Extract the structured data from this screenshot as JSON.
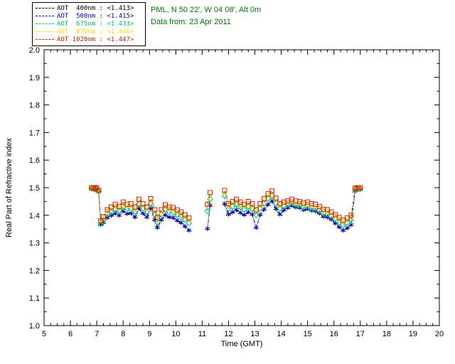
{
  "header": {
    "site_line": "PML, N 50 22', W 04 08', Alt 0m",
    "date_line": "Data from: 23 Apr 2011",
    "text_color": "#007700"
  },
  "legend": {
    "items": [
      {
        "label": "AOT  400nm : <1.413>",
        "color": "#000000",
        "marker": "dash"
      },
      {
        "label": "AOT  500nm : <1.415>",
        "color": "#0000cc",
        "marker": "asterisk"
      },
      {
        "label": "AOT  675nm : <1.433>",
        "color": "#00c060",
        "marker": "diamond"
      },
      {
        "label": "AOT  870nm : <1.446>",
        "color": "#ffd800",
        "marker": "x"
      },
      {
        "label": "AOT 1020nm : <1.447>",
        "color": "#cc2200",
        "marker": "square"
      }
    ]
  },
  "chart_data": {
    "type": "scatter",
    "title": "",
    "xlabel": "Time (GMT)",
    "ylabel": "Real Part of Refractive index",
    "xlim": [
      5,
      20
    ],
    "ylim": [
      1.0,
      2.0
    ],
    "xticks": [
      5,
      6,
      7,
      8,
      9,
      10,
      11,
      12,
      13,
      14,
      15,
      16,
      17,
      18,
      19,
      20
    ],
    "yticks": [
      1.0,
      1.1,
      1.2,
      1.3,
      1.4,
      1.5,
      1.6,
      1.7,
      1.8,
      1.9,
      2.0
    ],
    "grid": false,
    "legend_position": "top-left",
    "x": [
      6.8,
      6.87,
      6.93,
      7.0,
      7.07,
      7.15,
      7.25,
      7.4,
      7.55,
      7.7,
      7.85,
      8.0,
      8.15,
      8.3,
      8.45,
      8.6,
      8.75,
      8.9,
      9.05,
      9.2,
      9.3,
      9.45,
      9.6,
      9.75,
      9.9,
      10.05,
      10.2,
      10.35,
      10.5,
      11.2,
      11.3,
      11.85,
      12.0,
      12.15,
      12.3,
      12.45,
      12.6,
      12.75,
      12.9,
      13.05,
      13.2,
      13.35,
      13.5,
      13.65,
      13.8,
      13.95,
      14.1,
      14.25,
      14.4,
      14.55,
      14.7,
      14.85,
      15.0,
      15.15,
      15.3,
      15.45,
      15.6,
      15.75,
      15.9,
      16.05,
      16.2,
      16.35,
      16.5,
      16.65,
      16.8,
      16.87,
      16.93,
      17.0
    ],
    "series": [
      {
        "name": "AOT 400nm",
        "mean": "<1.413>",
        "color": "#000000",
        "marker": "dash",
        "values": [
          1.495,
          1.495,
          1.492,
          1.495,
          1.485,
          1.364,
          1.371,
          1.389,
          1.397,
          1.405,
          1.397,
          1.413,
          1.403,
          1.405,
          1.391,
          1.423,
          1.405,
          1.391,
          1.423,
          1.381,
          1.353,
          1.381,
          1.399,
          1.391,
          1.389,
          1.379,
          1.371,
          1.357,
          1.343,
          1.349,
          1.433,
          1.439,
          1.401,
          1.409,
          1.417,
          1.407,
          1.399,
          1.409,
          1.401,
          1.353,
          1.399,
          1.419,
          1.437,
          1.449,
          1.421,
          1.401,
          1.417,
          1.425,
          1.433,
          1.427,
          1.425,
          1.417,
          1.421,
          1.415,
          1.413,
          1.405,
          1.393,
          1.391,
          1.383,
          1.369,
          1.355,
          1.343,
          1.351,
          1.363,
          1.485,
          1.491,
          1.491,
          1.491
        ]
      },
      {
        "name": "AOT 500nm",
        "mean": "<1.415>",
        "color": "#0000cc",
        "marker": "asterisk",
        "values": [
          1.496,
          1.496,
          1.493,
          1.496,
          1.486,
          1.366,
          1.374,
          1.392,
          1.4,
          1.408,
          1.4,
          1.416,
          1.406,
          1.408,
          1.394,
          1.426,
          1.408,
          1.394,
          1.426,
          1.384,
          1.356,
          1.384,
          1.402,
          1.394,
          1.392,
          1.382,
          1.374,
          1.36,
          1.346,
          1.352,
          1.436,
          1.442,
          1.404,
          1.412,
          1.42,
          1.41,
          1.402,
          1.412,
          1.404,
          1.356,
          1.402,
          1.422,
          1.44,
          1.452,
          1.424,
          1.404,
          1.42,
          1.428,
          1.436,
          1.43,
          1.428,
          1.42,
          1.424,
          1.418,
          1.416,
          1.408,
          1.396,
          1.394,
          1.386,
          1.372,
          1.358,
          1.346,
          1.354,
          1.366,
          1.488,
          1.494,
          1.494,
          1.494
        ]
      },
      {
        "name": "AOT 675nm",
        "mean": "<1.433>",
        "color": "#00c060",
        "marker": "diamond",
        "values": [
          1.497,
          1.497,
          1.494,
          1.497,
          1.487,
          1.37,
          1.382,
          1.403,
          1.412,
          1.422,
          1.414,
          1.43,
          1.422,
          1.424,
          1.412,
          1.44,
          1.424,
          1.412,
          1.442,
          1.402,
          1.374,
          1.402,
          1.42,
          1.412,
          1.41,
          1.402,
          1.394,
          1.384,
          1.372,
          1.415,
          1.458,
          1.47,
          1.424,
          1.432,
          1.44,
          1.43,
          1.422,
          1.432,
          1.424,
          1.4,
          1.424,
          1.442,
          1.46,
          1.47,
          1.444,
          1.424,
          1.432,
          1.438,
          1.444,
          1.438,
          1.436,
          1.428,
          1.432,
          1.426,
          1.424,
          1.416,
          1.406,
          1.404,
          1.396,
          1.386,
          1.374,
          1.364,
          1.372,
          1.382,
          1.492,
          1.496,
          1.496,
          1.496
        ]
      },
      {
        "name": "AOT 870nm",
        "mean": "<1.446>",
        "color": "#ffd800",
        "marker": "x",
        "values": [
          1.498,
          1.498,
          1.495,
          1.498,
          1.488,
          1.375,
          1.389,
          1.413,
          1.423,
          1.433,
          1.425,
          1.441,
          1.433,
          1.435,
          1.423,
          1.451,
          1.435,
          1.423,
          1.453,
          1.413,
          1.385,
          1.413,
          1.431,
          1.423,
          1.421,
          1.413,
          1.405,
          1.395,
          1.383,
          1.431,
          1.473,
          1.482,
          1.435,
          1.443,
          1.451,
          1.441,
          1.433,
          1.443,
          1.435,
          1.413,
          1.435,
          1.453,
          1.471,
          1.481,
          1.455,
          1.435,
          1.441,
          1.445,
          1.451,
          1.445,
          1.443,
          1.437,
          1.441,
          1.435,
          1.433,
          1.425,
          1.415,
          1.413,
          1.405,
          1.395,
          1.385,
          1.375,
          1.383,
          1.393,
          1.495,
          1.498,
          1.498,
          1.498
        ]
      },
      {
        "name": "AOT 1020nm",
        "mean": "<1.447>",
        "color": "#cc2200",
        "marker": "square",
        "values": [
          1.5,
          1.5,
          1.497,
          1.5,
          1.49,
          1.38,
          1.395,
          1.42,
          1.43,
          1.44,
          1.432,
          1.448,
          1.44,
          1.442,
          1.43,
          1.458,
          1.442,
          1.43,
          1.46,
          1.42,
          1.392,
          1.42,
          1.438,
          1.43,
          1.428,
          1.42,
          1.412,
          1.402,
          1.39,
          1.44,
          1.482,
          1.49,
          1.442,
          1.45,
          1.458,
          1.448,
          1.44,
          1.45,
          1.442,
          1.42,
          1.442,
          1.46,
          1.478,
          1.488,
          1.462,
          1.442,
          1.448,
          1.452,
          1.458,
          1.452,
          1.45,
          1.444,
          1.448,
          1.442,
          1.44,
          1.432,
          1.422,
          1.42,
          1.412,
          1.402,
          1.392,
          1.382,
          1.39,
          1.4,
          1.498,
          1.5,
          1.5,
          1.5
        ]
      }
    ]
  }
}
